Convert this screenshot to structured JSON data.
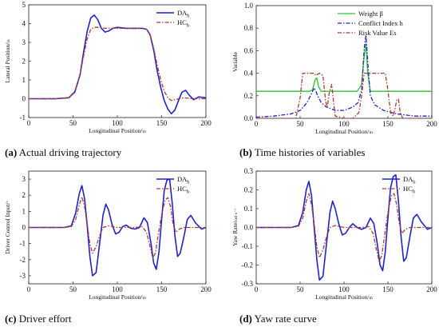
{
  "captions": [
    {
      "tag": "(a)",
      "text": "Actual driving trajectory"
    },
    {
      "tag": "(b)",
      "text": "Time histories of variables"
    },
    {
      "tag": "(c)",
      "text": "Driver effort"
    },
    {
      "tag": "(d)",
      "text": "Yaw rate curve"
    }
  ],
  "chart_data": [
    {
      "id": "a",
      "type": "line",
      "title": "",
      "xlabel": "Longitudinal Position/m",
      "ylabel": "Lateral Position/m",
      "xlim": [
        0,
        200
      ],
      "ylim": [
        -1,
        5
      ],
      "xticks": [
        "0",
        "50",
        "100",
        "150",
        "200"
      ],
      "yticks": [
        "-1",
        "0",
        "1",
        "2",
        "3",
        "4",
        "5"
      ],
      "legend_position": "top-right",
      "series": [
        {
          "name": "DA_b",
          "color": "#1f23c9",
          "style": "solid",
          "width": 1.6,
          "x": [
            0,
            30,
            45,
            52,
            58,
            62,
            66,
            70,
            74,
            78,
            82,
            86,
            90,
            95,
            100,
            110,
            120,
            128,
            133,
            137,
            141,
            145,
            149,
            153,
            157,
            161,
            165,
            169,
            173,
            177,
            181,
            186,
            192,
            200
          ],
          "y": [
            0,
            0,
            0.05,
            0.35,
            1.3,
            2.5,
            3.6,
            4.3,
            4.45,
            4.2,
            3.75,
            3.55,
            3.6,
            3.75,
            3.8,
            3.75,
            3.75,
            3.75,
            3.7,
            3.4,
            2.6,
            1.5,
            0.6,
            -0.1,
            -0.55,
            -0.8,
            -0.6,
            -0.1,
            0.35,
            0.45,
            0.2,
            -0.05,
            0.1,
            0.05
          ]
        },
        {
          "name": "HC_b",
          "color": "#b03a2e",
          "style": "dashdot",
          "width": 1.3,
          "x": [
            0,
            30,
            45,
            52,
            58,
            62,
            66,
            70,
            74,
            78,
            85,
            95,
            110,
            125,
            133,
            137,
            141,
            145,
            149,
            153,
            157,
            161,
            165,
            170,
            176,
            185,
            200
          ],
          "y": [
            0,
            0,
            0.05,
            0.4,
            1.3,
            2.3,
            3.2,
            3.7,
            3.8,
            3.8,
            3.75,
            3.75,
            3.75,
            3.75,
            3.7,
            3.4,
            2.7,
            1.8,
            1.0,
            0.4,
            0.05,
            -0.1,
            -0.05,
            0,
            0.05,
            0,
            0
          ]
        }
      ]
    },
    {
      "id": "b",
      "type": "line",
      "title": "",
      "xlabel": "Longitudinal Position/m",
      "ylabel": "Variable",
      "xlim": [
        0,
        200
      ],
      "ylim": [
        0,
        1.0
      ],
      "xticks": [
        "0",
        "50",
        "100",
        "150",
        "200"
      ],
      "yticks": [
        "0.0",
        "0.2",
        "0.4",
        "0.6",
        "0.8",
        "1.0"
      ],
      "legend_position": "top-right",
      "series": [
        {
          "name": "Weight β",
          "color": "#2ec234",
          "style": "solid",
          "width": 1.3,
          "x": [
            0,
            60,
            64,
            67,
            69,
            71,
            74,
            115,
            120,
            123,
            125,
            127,
            130,
            200
          ],
          "y": [
            0.24,
            0.24,
            0.25,
            0.34,
            0.36,
            0.28,
            0.24,
            0.24,
            0.3,
            0.55,
            0.66,
            0.4,
            0.24,
            0.24
          ]
        },
        {
          "name": "Conflict Index h",
          "color": "#1f23c9",
          "style": "dashdot",
          "width": 1.3,
          "x": [
            0,
            20,
            40,
            50,
            58,
            63,
            66,
            68,
            70,
            74,
            80,
            90,
            100,
            110,
            116,
            120,
            123,
            125,
            127,
            130,
            135,
            145,
            160,
            180,
            200
          ],
          "y": [
            0.01,
            0.02,
            0.04,
            0.07,
            0.14,
            0.22,
            0.27,
            0.24,
            0.2,
            0.14,
            0.1,
            0.07,
            0.07,
            0.1,
            0.14,
            0.25,
            0.62,
            0.74,
            0.5,
            0.2,
            0.12,
            0.07,
            0.04,
            0.02,
            0.02
          ]
        },
        {
          "name": "Risk Value Es",
          "color": "#b03a2e",
          "style": "dashdot",
          "width": 1.3,
          "x": [
            0,
            45,
            50,
            53,
            60,
            66,
            68,
            72,
            76,
            79,
            81,
            83,
            86,
            88,
            90,
            100,
            110,
            117,
            120,
            123,
            125,
            127,
            130,
            140,
            147,
            150,
            153,
            156,
            158,
            160,
            162,
            164,
            167,
            175,
            200
          ],
          "y": [
            0,
            0,
            0.18,
            0.4,
            0.4,
            0.4,
            0.38,
            0.4,
            0.38,
            0.15,
            0.1,
            0.22,
            0.3,
            0.15,
            0.02,
            0,
            0,
            0.05,
            0.2,
            0.4,
            0.4,
            0.4,
            0.4,
            0.4,
            0.4,
            0.25,
            0.05,
            0.02,
            0.08,
            0.16,
            0.17,
            0.05,
            0,
            0,
            0
          ]
        }
      ]
    },
    {
      "id": "c",
      "type": "line",
      "title": "",
      "xlabel": "Longitudinal Position/m",
      "ylabel": "Driver Control Input/°",
      "xlim": [
        0,
        200
      ],
      "ylim": [
        -3.5,
        3.5
      ],
      "xticks": [
        "0",
        "50",
        "100",
        "150",
        "200"
      ],
      "yticks": [
        "-3",
        "-2",
        "-1",
        "0",
        "1",
        "2",
        "3"
      ],
      "legend_position": "top-right",
      "series": [
        {
          "name": "DA_b",
          "color": "#1f23c9",
          "style": "solid",
          "width": 1.6,
          "x": [
            0,
            40,
            48,
            53,
            57,
            60,
            63,
            66,
            69,
            72,
            76,
            80,
            84,
            87,
            90,
            94,
            98,
            102,
            106,
            110,
            115,
            120,
            125,
            130,
            134,
            138,
            141,
            144,
            147,
            150,
            153,
            156,
            159,
            162,
            165,
            168,
            171,
            175,
            179,
            183,
            188,
            195,
            200
          ],
          "y": [
            0,
            0,
            0.1,
            0.9,
            2.1,
            2.6,
            1.8,
            0.1,
            -1.8,
            -3.0,
            -2.8,
            -1.0,
            0.8,
            1.45,
            1.1,
            0.2,
            -0.4,
            -0.3,
            0.05,
            0.15,
            -0.05,
            -0.1,
            0.0,
            0.6,
            0.3,
            -1.0,
            -2.2,
            -2.6,
            -1.5,
            0.5,
            2.3,
            2.95,
            3.0,
            1.5,
            -0.5,
            -1.8,
            -1.6,
            -0.6,
            0.5,
            0.75,
            0.3,
            -0.1,
            0
          ]
        },
        {
          "name": "HC_b",
          "color": "#b03a2e",
          "style": "dashdot",
          "width": 1.3,
          "x": [
            0,
            40,
            48,
            53,
            57,
            60,
            63,
            66,
            69,
            72,
            76,
            80,
            84,
            90,
            95,
            100,
            110,
            120,
            128,
            133,
            137,
            140,
            143,
            146,
            150,
            154,
            157,
            160,
            163,
            166,
            170,
            175,
            185,
            200
          ],
          "y": [
            0,
            0,
            0.05,
            0.5,
            1.4,
            1.9,
            1.3,
            0.2,
            -1.0,
            -1.6,
            -1.2,
            -0.5,
            0,
            0.1,
            0.05,
            0,
            0,
            0,
            0.05,
            -0.3,
            -1.2,
            -1.9,
            -1.6,
            -0.5,
            0.8,
            1.7,
            1.85,
            1.3,
            0.2,
            -0.3,
            -0.1,
            0,
            0,
            0
          ]
        }
      ]
    },
    {
      "id": "d",
      "type": "line",
      "title": "",
      "xlabel": "Longitudinal Position/m",
      "ylabel": "Yaw Rate/rad·s⁻¹",
      "xlim": [
        0,
        200
      ],
      "ylim": [
        -0.3,
        0.3
      ],
      "xticks": [
        "0",
        "50",
        "100",
        "150",
        "200"
      ],
      "yticks": [
        "-0.3",
        "-0.2",
        "-0.1",
        "0.0",
        "0.1",
        "0.2",
        "0.3"
      ],
      "legend_position": "top-right",
      "series": [
        {
          "name": "DA_b",
          "color": "#1f23c9",
          "style": "solid",
          "width": 1.6,
          "x": [
            0,
            40,
            48,
            53,
            57,
            60,
            63,
            66,
            69,
            72,
            76,
            80,
            84,
            87,
            90,
            94,
            98,
            102,
            106,
            110,
            115,
            120,
            125,
            130,
            134,
            138,
            141,
            144,
            147,
            150,
            153,
            156,
            159,
            162,
            165,
            168,
            171,
            175,
            179,
            183,
            188,
            195,
            200
          ],
          "y": [
            0,
            0,
            0.01,
            0.08,
            0.2,
            0.245,
            0.17,
            0.0,
            -0.17,
            -0.28,
            -0.26,
            -0.09,
            0.08,
            0.14,
            0.1,
            0.02,
            -0.04,
            -0.03,
            0.0,
            0.02,
            0.0,
            -0.01,
            0.0,
            0.05,
            0.02,
            -0.09,
            -0.2,
            -0.23,
            -0.13,
            0.05,
            0.21,
            0.27,
            0.28,
            0.14,
            -0.05,
            -0.18,
            -0.16,
            -0.05,
            0.05,
            0.07,
            0.03,
            -0.01,
            0
          ]
        },
        {
          "name": "HC_b",
          "color": "#b03a2e",
          "style": "dashdot",
          "width": 1.3,
          "x": [
            0,
            40,
            48,
            53,
            57,
            60,
            63,
            66,
            69,
            72,
            76,
            80,
            84,
            90,
            95,
            100,
            110,
            120,
            128,
            133,
            137,
            140,
            143,
            146,
            150,
            154,
            157,
            160,
            163,
            166,
            170,
            175,
            185,
            200
          ],
          "y": [
            0,
            0,
            0.005,
            0.05,
            0.14,
            0.18,
            0.12,
            0.02,
            -0.1,
            -0.16,
            -0.12,
            -0.05,
            0,
            0.01,
            0.005,
            0,
            0,
            0,
            0.005,
            -0.03,
            -0.12,
            -0.18,
            -0.15,
            -0.05,
            0.08,
            0.17,
            0.18,
            0.12,
            0.02,
            -0.03,
            -0.01,
            0,
            0,
            0
          ]
        }
      ]
    }
  ]
}
